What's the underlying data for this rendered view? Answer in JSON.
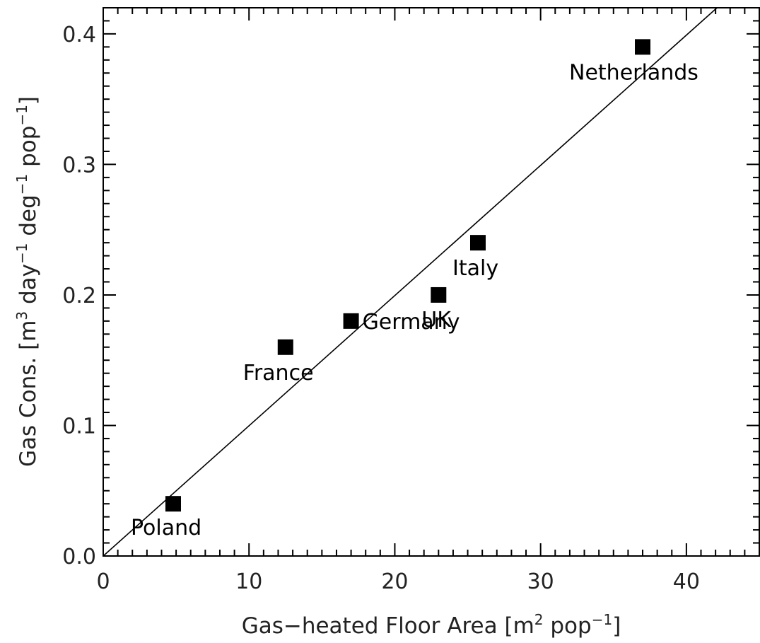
{
  "chart_data": {
    "type": "scatter",
    "title": "",
    "xlabel": {
      "parts": [
        {
          "text": "Gas−heated Floor Area [m"
        },
        {
          "text": "2",
          "sup": true
        },
        {
          "text": " pop"
        },
        {
          "text": "−1",
          "sup": true
        },
        {
          "text": "]"
        }
      ]
    },
    "ylabel": {
      "parts": [
        {
          "text": "Gas Cons. [m"
        },
        {
          "text": "3",
          "sup": true
        },
        {
          "text": " day"
        },
        {
          "text": "−1",
          "sup": true
        },
        {
          "text": " deg"
        },
        {
          "text": "−1",
          "sup": true
        },
        {
          "text": " pop"
        },
        {
          "text": "−1",
          "sup": true
        },
        {
          "text": "]"
        }
      ]
    },
    "xlim": [
      0,
      45
    ],
    "ylim": [
      0,
      0.42
    ],
    "x_ticks": [
      0,
      10,
      20,
      30,
      40
    ],
    "x_tick_labels": [
      "0",
      "10",
      "20",
      "30",
      "40"
    ],
    "y_ticks": [
      0.0,
      0.1,
      0.2,
      0.3,
      0.4
    ],
    "y_tick_labels": [
      "0.0",
      "0.1",
      "0.2",
      "0.3",
      "0.4"
    ],
    "x_minor_step": 1,
    "y_minor_step": 0.01,
    "grid": false,
    "legend": "none",
    "marker": "square",
    "marker_color": "#000000",
    "points": [
      {
        "label": "Poland",
        "x": 4.8,
        "y": 0.04
      },
      {
        "label": "France",
        "x": 12.5,
        "y": 0.16
      },
      {
        "label": "Germany",
        "x": 17.0,
        "y": 0.18
      },
      {
        "label": "UK",
        "x": 23.0,
        "y": 0.2
      },
      {
        "label": "Italy",
        "x": 25.7,
        "y": 0.24
      },
      {
        "label": "Netherlands",
        "x": 37.0,
        "y": 0.39
      }
    ],
    "fit_line": {
      "x": [
        0,
        42.1
      ],
      "y": [
        0,
        0.42
      ],
      "color": "#000000"
    }
  }
}
